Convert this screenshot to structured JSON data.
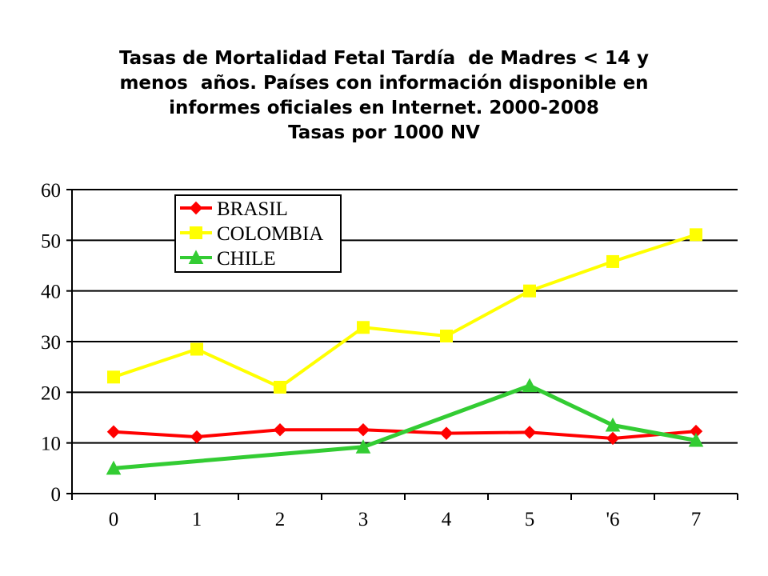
{
  "title_lines": [
    "Tasas de Mortalidad Fetal Tardía  de Madres < 14 y",
    "menos  años. Países con información disponible en",
    "informes oficiales en Internet. 2000-2008",
    "Tasas por 1000 NV"
  ],
  "chart_data": {
    "type": "line",
    "title": "Tasas de Mortalidad Fetal Tardía  de Madres < 14 y menos  años. Países con información disponible en informes oficiales en Internet. 2000-2008 Tasas por 1000 NV",
    "categories": [
      "0",
      "1",
      "2",
      "3",
      "4",
      "5",
      "'6",
      "7"
    ],
    "ylim": [
      0,
      60
    ],
    "yticks": [
      "0",
      "10",
      "20",
      "30",
      "40",
      "50",
      "60"
    ],
    "grid": true,
    "legend_position": "top-left",
    "series": [
      {
        "name": "BRASIL",
        "color": "#ff0000",
        "marker": "diamond",
        "values": [
          12.2,
          11.2,
          12.6,
          12.6,
          11.9,
          12.1,
          10.9,
          12.3
        ]
      },
      {
        "name": "COLOMBIA",
        "color": "#ffff00",
        "marker": "square",
        "values": [
          23.0,
          28.5,
          21.0,
          32.8,
          31.1,
          40.0,
          45.8,
          51.1
        ]
      },
      {
        "name": "CHILE",
        "color": "#33cc33",
        "marker": "triangle",
        "values": [
          5.0,
          null,
          null,
          9.2,
          null,
          21.3,
          13.5,
          10.5
        ]
      }
    ]
  }
}
